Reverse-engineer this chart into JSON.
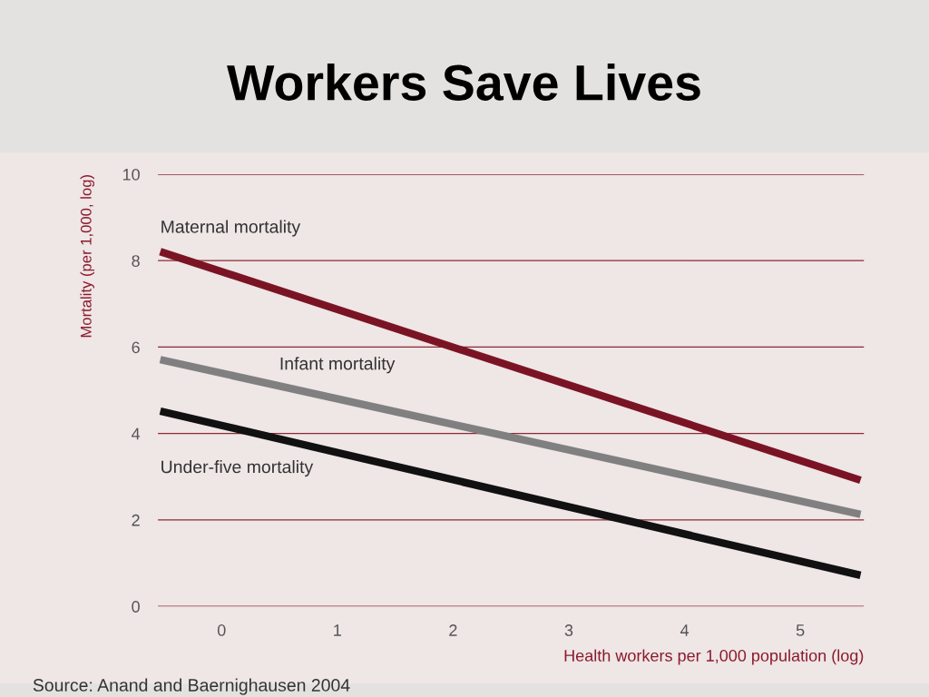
{
  "chart_data": {
    "type": "line",
    "title": "Workers Save Lives",
    "xlabel": "Health workers per 1,000 population (log)",
    "ylabel": "Mortality (per 1,000, log)",
    "x": [
      -0.53,
      5.52
    ],
    "series": [
      {
        "name": "Maternal mortality",
        "color": "#7a1424",
        "values": [
          8.21,
          2.92
        ]
      },
      {
        "name": "Infant mortality",
        "color": "#808080",
        "values": [
          5.71,
          2.13
        ]
      },
      {
        "name": "Under-five mortality",
        "color": "#111111",
        "values": [
          4.52,
          0.72
        ]
      }
    ],
    "xlim": [
      -0.55,
      5.55
    ],
    "xticks": [
      0,
      1,
      2,
      3,
      4,
      5
    ],
    "ylim": [
      0,
      10
    ],
    "yticks": [
      0,
      2,
      4,
      6,
      8,
      10
    ],
    "grid": "y",
    "legend": false,
    "marker": "none",
    "line_style": "solid",
    "annotations": [
      "Source: Anand and Baernighausen 2004"
    ]
  }
}
